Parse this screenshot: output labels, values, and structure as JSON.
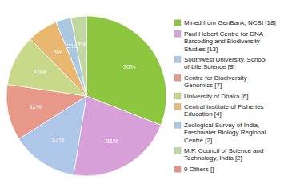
{
  "chart_data": {
    "type": "pie",
    "categories": [
      "Mined from GenBank, NCBI [18]",
      "Paul Hebert Centre for DNA\nBarcoding and Biodiversity\nStudies [13]",
      "Southwest University, School\nof Life Science [8]",
      "Centre for Biodiversity\nGenomics [7]",
      "University of Dhaka [6]",
      "Central Institute of Fisheries\nEducation [4]",
      "Zoological Survey of India,\nFreshwater Biology Regional\nCentre [2]",
      "M.P. Council of Science and\nTechnology, India [2]",
      "0 Others []"
    ],
    "values": [
      30,
      21,
      13,
      11,
      10,
      6,
      3,
      3,
      0
    ],
    "value_labels": [
      "30%",
      "21%",
      "13%",
      "11%",
      "10%",
      "6%",
      "3%",
      "3%",
      null
    ],
    "colors": [
      "#8dc63f",
      "#d8a0d8",
      "#aec6e8",
      "#e8998a",
      "#c8d98a",
      "#e8b870",
      "#aac8e0",
      "#c0d8a0",
      "#e89090"
    ],
    "data_labels": true,
    "legend": "right"
  }
}
